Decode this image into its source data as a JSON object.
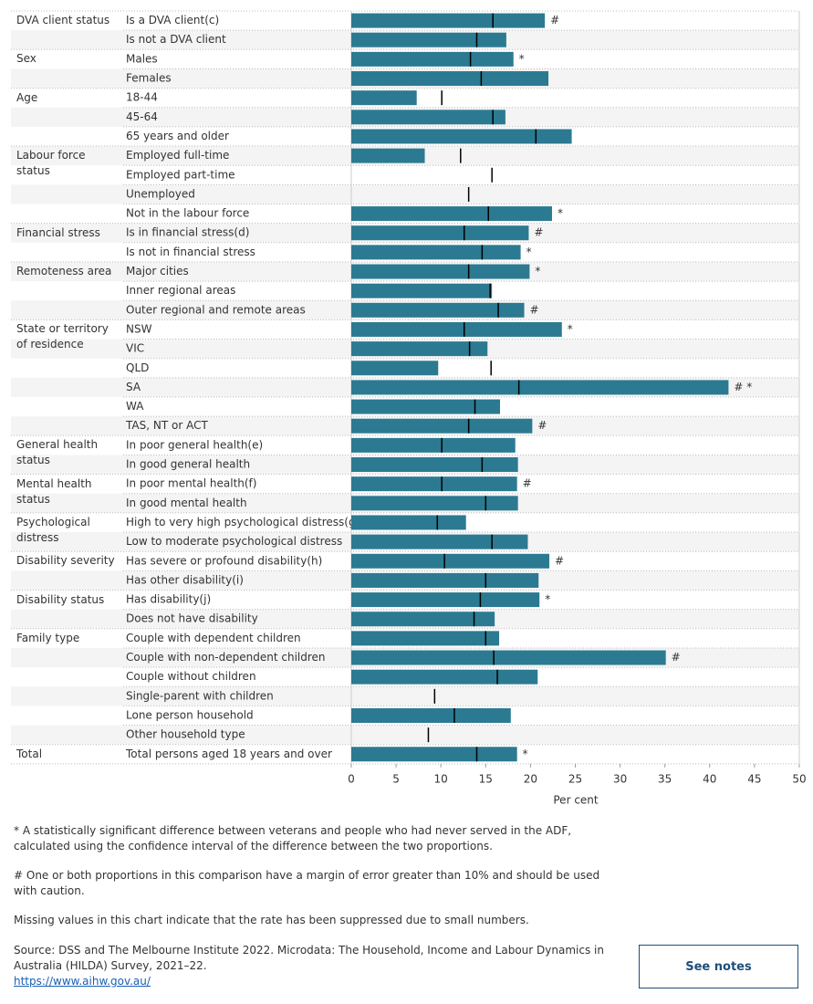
{
  "chart_data": {
    "type": "bar",
    "group_labels": [
      "DVA client status",
      null,
      "Sex",
      null,
      "Age",
      null,
      null,
      "Labour force status",
      null,
      null,
      null,
      "Financial stress",
      null,
      "Remoteness area",
      null,
      null,
      "State or territory of residence",
      null,
      null,
      null,
      null,
      null,
      "General health status",
      null,
      "Mental health status",
      null,
      "Psychological distress",
      null,
      "Disability severity",
      null,
      "Disability status",
      null,
      "Family type",
      null,
      null,
      null,
      null,
      null,
      "Total"
    ],
    "categories": [
      "Is a DVA client(c)",
      "Is not a DVA client",
      "Males",
      "Females",
      "18-44",
      "45-64",
      "65 years and older",
      "Employed full-time",
      "Employed part-time",
      "Unemployed",
      "Not in the labour force",
      "Is in financial stress(d)",
      "Is not in financial stress",
      "Major cities",
      "Inner regional areas",
      "Outer regional and remote areas",
      "NSW",
      "VIC",
      "QLD",
      "SA",
      "WA",
      "TAS, NT or ACT",
      "In poor general health(e)",
      "In good general health",
      "In poor mental health(f)",
      "In good mental health",
      "High to very high psychological distress(g)",
      "Low to moderate psychological distress",
      "Has severe or profound disability(h)",
      "Has other disability(i)",
      "Has disability(j)",
      "Does not have disability",
      "Couple with dependent children",
      "Couple with non-dependent children",
      "Couple without children",
      "Single-parent with children",
      "Lone person household",
      "Other household type",
      "Total persons aged 18 years and over"
    ],
    "values": [
      21.6,
      17.3,
      18.1,
      22.0,
      7.3,
      17.2,
      24.6,
      8.2,
      null,
      null,
      22.4,
      19.8,
      18.9,
      19.9,
      15.7,
      19.3,
      23.5,
      15.2,
      9.7,
      42.1,
      16.6,
      20.2,
      18.3,
      18.6,
      18.5,
      18.6,
      12.8,
      19.7,
      22.1,
      20.9,
      21.0,
      16.0,
      16.5,
      35.1,
      20.8,
      null,
      17.8,
      null,
      18.5
    ],
    "comparison_values": [
      15.8,
      14.0,
      13.3,
      14.5,
      10.1,
      15.8,
      20.6,
      12.2,
      15.7,
      13.1,
      15.3,
      12.6,
      14.6,
      13.1,
      15.5,
      16.4,
      12.6,
      13.2,
      15.6,
      18.7,
      13.8,
      13.1,
      10.1,
      14.6,
      10.1,
      15.0,
      9.6,
      15.7,
      10.4,
      15.0,
      14.4,
      13.7,
      15.0,
      15.9,
      16.3,
      9.3,
      11.5,
      8.6,
      14.0
    ],
    "annotations": [
      "#",
      null,
      "*",
      null,
      null,
      null,
      null,
      null,
      null,
      null,
      "*",
      "#",
      "*",
      "*",
      null,
      "#",
      "*",
      null,
      null,
      "# *",
      null,
      "#",
      null,
      null,
      "#",
      null,
      null,
      null,
      "#",
      null,
      "*",
      null,
      null,
      "#",
      null,
      null,
      null,
      null,
      "*"
    ],
    "color": "#2b7a92",
    "comparison_color": "#000000",
    "xlim": [
      0,
      50
    ],
    "xticks": [
      0,
      5,
      10,
      15,
      20,
      25,
      30,
      35,
      40,
      45,
      50
    ],
    "x_label": "Per cent"
  },
  "footer": {
    "notes": [
      "* A statistically significant difference between veterans and people who had never served in the ADF, calculated using the confidence interval of the difference between the two proportions.",
      "# One or both proportions in this comparison have a margin of error greater than 10% and should be used with caution.",
      "Missing values in this chart indicate that the rate has been suppressed due to small numbers."
    ],
    "source": "Source: DSS and The Melbourne Institute 2022. Microdata: The Household, Income and Labour Dynamics in Australia (HILDA) Survey, 2021–22.",
    "link": "https://www.aihw.gov.au/",
    "button": "See notes"
  }
}
